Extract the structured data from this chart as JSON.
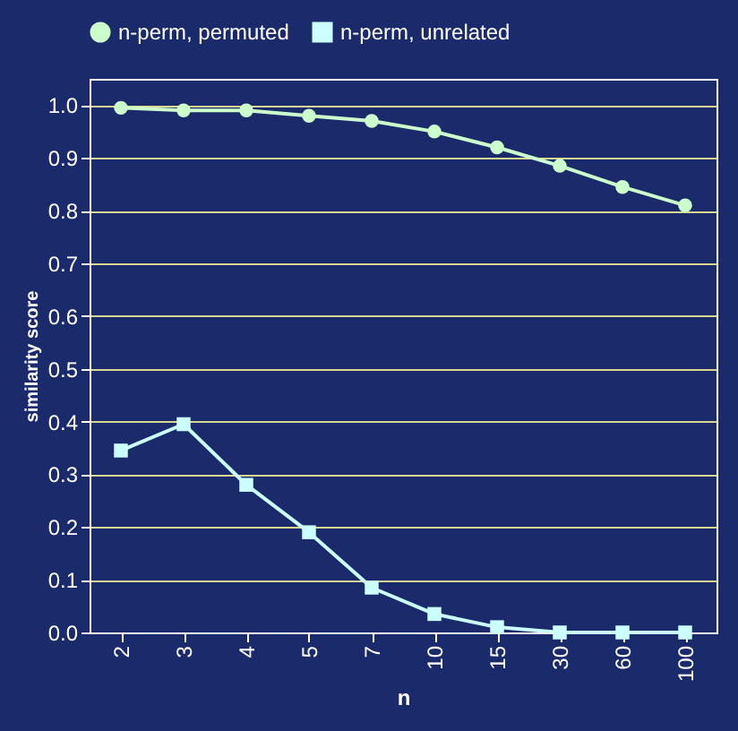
{
  "chart_data": {
    "type": "line",
    "xlabel": "n",
    "ylabel": "similarity score",
    "categories": [
      "2",
      "3",
      "4",
      "5",
      "7",
      "10",
      "15",
      "30",
      "60",
      "100"
    ],
    "series": [
      {
        "name": "n-perm, permuted",
        "color": "#ccffcc",
        "marker": "circle",
        "values": [
          0.995,
          0.99,
          0.99,
          0.98,
          0.97,
          0.95,
          0.92,
          0.885,
          0.845,
          0.81
        ]
      },
      {
        "name": "n-perm, unrelated",
        "color": "#ccffff",
        "marker": "square",
        "values": [
          0.345,
          0.395,
          0.28,
          0.19,
          0.085,
          0.035,
          0.01,
          0.0,
          0.0,
          0.0
        ]
      }
    ],
    "ylim": [
      0,
      1.05
    ],
    "yticks": [
      {
        "value": 0,
        "label": "0.0"
      },
      {
        "value": 0.1,
        "label": "0.1"
      },
      {
        "value": 0.2,
        "label": "0.2"
      },
      {
        "value": 0.3,
        "label": "0.3"
      },
      {
        "value": 0.4,
        "label": "0.4"
      },
      {
        "value": 0.5,
        "label": "0.5"
      },
      {
        "value": 0.6,
        "label": "0.6"
      },
      {
        "value": 0.7,
        "label": "0.7"
      },
      {
        "value": 0.8,
        "label": "0.8"
      },
      {
        "value": 0.9,
        "label": "0.9"
      },
      {
        "value": 1.0,
        "label": "1.0"
      }
    ],
    "grid": "y",
    "legend": "top",
    "line_style": "solid"
  }
}
